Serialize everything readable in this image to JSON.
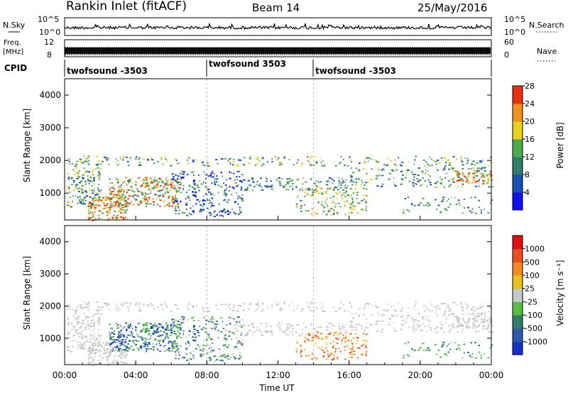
{
  "header": {
    "station": "Rankin Inlet (fitACF)",
    "beam": "Beam 14",
    "date": "25/May/2016"
  },
  "strips": {
    "nsky_label": "N.Sky",
    "nsky_ticks": [
      "10^5",
      "10^0"
    ],
    "nsearch_label": "N.Search",
    "nsearch_ticks": [
      "10^5",
      "10^0"
    ],
    "freq_label_1": "Freq.",
    "freq_label_2": "[MHz]",
    "freq_ticks": [
      "12",
      "8"
    ],
    "nave_label": "Nave",
    "nave_ticks": [
      "60",
      "0"
    ],
    "cpid_label": "CPID",
    "cpid_segments": [
      {
        "label": "twofsound -3503",
        "start_h": 0,
        "end_h": 8
      },
      {
        "label": "twofsound 3503",
        "start_h": 8,
        "end_h": 14
      },
      {
        "label": "twofsound -3503",
        "start_h": 14,
        "end_h": 24
      }
    ]
  },
  "x_axis": {
    "label": "Time UT",
    "ticks": [
      "00:00",
      "04:00",
      "08:00",
      "12:00",
      "16:00",
      "20:00",
      "00:00"
    ]
  },
  "chart_data": [
    {
      "type": "heatmap",
      "panel": "power",
      "ylabel": "Slant Range [km]",
      "ylim": [
        180,
        4500
      ],
      "xlim_hours": [
        0,
        24
      ],
      "yticks": [
        "1000",
        "2000",
        "3000",
        "4000"
      ],
      "colorbar": {
        "label": "Power [dB]",
        "ticks": [
          "4",
          "8",
          "12",
          "16",
          "20",
          "24",
          "28"
        ],
        "colors": [
          "#1010f0",
          "#1a4fb4",
          "#2f7d6a",
          "#4caa4a",
          "#e8d020",
          "#f09020",
          "#e83010"
        ]
      }
    },
    {
      "type": "heatmap",
      "panel": "velocity",
      "ylabel": "Slant Range [km]",
      "ylim": [
        180,
        4500
      ],
      "xlim_hours": [
        0,
        24
      ],
      "yticks": [
        "1000",
        "2000",
        "3000",
        "4000"
      ],
      "colorbar": {
        "label": "Velocity [m s⁻¹]",
        "ticks": [
          "1000",
          "500",
          "100",
          "25",
          "-25",
          "-100",
          "-500",
          "-1000"
        ],
        "colors": [
          "#1a30c8",
          "#2c5aa8",
          "#2f7d6a",
          "#55c040",
          "#c8c8c8",
          "#e8c020",
          "#f08c20",
          "#e85020",
          "#e01010"
        ]
      }
    }
  ]
}
